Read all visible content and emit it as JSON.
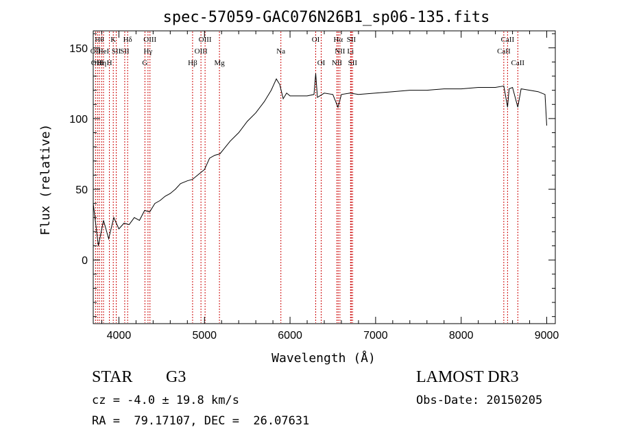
{
  "chart_data": {
    "type": "line",
    "title": "spec-57059-GAC076N26B1_sp06-135.fits",
    "xlabel": "Wavelength (Å)",
    "ylabel": "Flux (relative)",
    "xlim": [
      3700,
      9100
    ],
    "ylim": [
      -45,
      162
    ],
    "x_ticks": [
      4000,
      5000,
      6000,
      7000,
      8000,
      9000
    ],
    "x_tick_labels": [
      "4000",
      "5000",
      "6000",
      "7000",
      "8000",
      "9000"
    ],
    "y_ticks": [
      0,
      50,
      100,
      150
    ],
    "y_tick_labels": [
      "0",
      "50",
      "100",
      "150"
    ],
    "series": [
      {
        "name": "flux",
        "points": [
          [
            3700,
            40
          ],
          [
            3760,
            10
          ],
          [
            3820,
            28
          ],
          [
            3880,
            15
          ],
          [
            3940,
            30
          ],
          [
            4000,
            22
          ],
          [
            4060,
            26
          ],
          [
            4120,
            25
          ],
          [
            4180,
            30
          ],
          [
            4240,
            28
          ],
          [
            4300,
            35
          ],
          [
            4360,
            34
          ],
          [
            4420,
            40
          ],
          [
            4480,
            42
          ],
          [
            4540,
            45
          ],
          [
            4600,
            47
          ],
          [
            4660,
            50
          ],
          [
            4720,
            54
          ],
          [
            4800,
            56
          ],
          [
            4860,
            57
          ],
          [
            4920,
            60
          ],
          [
            5000,
            64
          ],
          [
            5060,
            72
          ],
          [
            5120,
            74
          ],
          [
            5180,
            75
          ],
          [
            5220,
            78
          ],
          [
            5300,
            84
          ],
          [
            5400,
            90
          ],
          [
            5500,
            98
          ],
          [
            5600,
            104
          ],
          [
            5700,
            112
          ],
          [
            5780,
            120
          ],
          [
            5840,
            128
          ],
          [
            5880,
            124
          ],
          [
            5920,
            114
          ],
          [
            5960,
            118
          ],
          [
            6000,
            116
          ],
          [
            6100,
            116
          ],
          [
            6200,
            116
          ],
          [
            6280,
            117
          ],
          [
            6300,
            132
          ],
          [
            6320,
            115
          ],
          [
            6400,
            118
          ],
          [
            6500,
            117
          ],
          [
            6560,
            108
          ],
          [
            6600,
            117
          ],
          [
            6700,
            118
          ],
          [
            6800,
            117
          ],
          [
            7000,
            118
          ],
          [
            7200,
            119
          ],
          [
            7400,
            120
          ],
          [
            7600,
            120
          ],
          [
            7800,
            121
          ],
          [
            8000,
            121
          ],
          [
            8200,
            122
          ],
          [
            8400,
            122
          ],
          [
            8498,
            123
          ],
          [
            8542,
            108
          ],
          [
            8560,
            121
          ],
          [
            8600,
            122
          ],
          [
            8662,
            108
          ],
          [
            8700,
            121
          ],
          [
            8800,
            120
          ],
          [
            8900,
            119
          ],
          [
            8980,
            117
          ],
          [
            9000,
            95
          ]
        ]
      }
    ],
    "line_markers": [
      {
        "wl": 3727,
        "label": "OII",
        "row": 1
      },
      {
        "wl": 3750,
        "label": "OIII",
        "row": 2
      },
      {
        "wl": 3771,
        "label": "Hθ",
        "row": 0
      },
      {
        "wl": 3798,
        "label": "Hη",
        "row": 2
      },
      {
        "wl": 3820,
        "label": "HeI",
        "row": 1
      },
      {
        "wl": 3889,
        "label": "H",
        "row": 2
      },
      {
        "wl": 3934,
        "label": "K",
        "row": 0
      },
      {
        "wl": 3969,
        "label": "SII",
        "row": 1
      },
      {
        "wl": 4102,
        "label": "Hδ",
        "row": 0
      },
      {
        "wl": 4068,
        "label": "SII",
        "row": 1
      },
      {
        "wl": 4304,
        "label": "G",
        "row": 2
      },
      {
        "wl": 4340,
        "label": "Hγ",
        "row": 1
      },
      {
        "wl": 4363,
        "label": "OIII",
        "row": 0
      },
      {
        "wl": 4861,
        "label": "Hβ",
        "row": 2
      },
      {
        "wl": 4959,
        "label": "OIII",
        "row": 1
      },
      {
        "wl": 5007,
        "label": "OIII",
        "row": 0
      },
      {
        "wl": 5175,
        "label": "Mg",
        "row": 2
      },
      {
        "wl": 5893,
        "label": "Na",
        "row": 1
      },
      {
        "wl": 6300,
        "label": "OI",
        "row": 0
      },
      {
        "wl": 6364,
        "label": "OI",
        "row": 2
      },
      {
        "wl": 6548,
        "label": "NII",
        "row": 2
      },
      {
        "wl": 6563,
        "label": "Hα",
        "row": 0
      },
      {
        "wl": 6583,
        "label": "NII",
        "row": 1
      },
      {
        "wl": 6707,
        "label": "Li",
        "row": 1
      },
      {
        "wl": 6716,
        "label": "SII",
        "row": 0
      },
      {
        "wl": 6731,
        "label": "SII",
        "row": 2
      },
      {
        "wl": 8498,
        "label": "CaII",
        "row": 1
      },
      {
        "wl": 8542,
        "label": "CaII",
        "row": 0
      },
      {
        "wl": 8662,
        "label": "CaII",
        "row": 2
      }
    ],
    "colors": {
      "line": "#000000",
      "markers": "#cc0000"
    }
  },
  "footer": {
    "object_class": "STAR",
    "subclass": "G3",
    "survey": "LAMOST DR3",
    "cz": "cz = -4.0 ± 19.8 km/s",
    "obs_date": "Obs-Date: 20150205",
    "coords": "RA =  79.17107, DEC =  26.07631"
  }
}
